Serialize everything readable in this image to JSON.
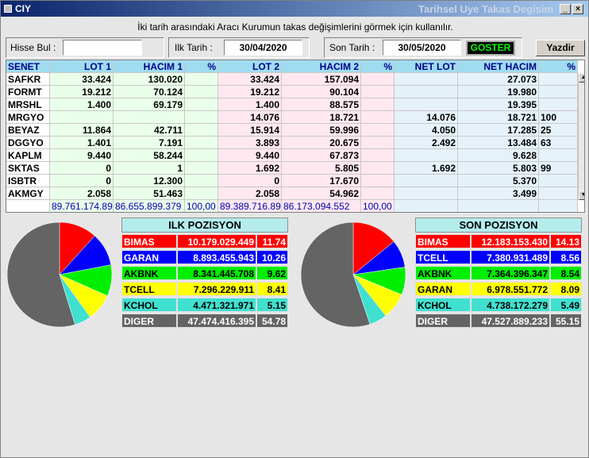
{
  "window": {
    "app_name": "CIY",
    "title": "Tarihsel Uye Takas Degisim"
  },
  "hint": "İki tarih arasındaki  Aracı Kurumun takas değişimlerini görmek için kullanılır.",
  "form": {
    "hisse_label": "Hisse Bul :",
    "hisse_value": "",
    "ilk_label": "Ilk Tarih :",
    "ilk_value": "30/04/2020",
    "son_label": "Son Tarih :",
    "son_value": "30/05/2020",
    "goster": "GOSTER",
    "yazdir": "Yazdir"
  },
  "table": {
    "headers": [
      "SENET",
      "LOT 1",
      "HACIM 1",
      "%",
      "LOT 2",
      "HACIM 2",
      "%",
      "NET LOT",
      "NET HACIM",
      "%"
    ],
    "rows": [
      [
        "SAFKR",
        "33.424",
        "130.020",
        "",
        "33.424",
        "157.094",
        "",
        "",
        "27.073",
        ""
      ],
      [
        "FORMT",
        "19.212",
        "70.124",
        "",
        "19.212",
        "90.104",
        "",
        "",
        "19.980",
        ""
      ],
      [
        "MRSHL",
        "1.400",
        "69.179",
        "",
        "1.400",
        "88.575",
        "",
        "",
        "19.395",
        ""
      ],
      [
        "MRGYO",
        "",
        "",
        "",
        "14.076",
        "18.721",
        "",
        "14.076",
        "18.721",
        "100"
      ],
      [
        "BEYAZ",
        "11.864",
        "42.711",
        "",
        "15.914",
        "59.996",
        "",
        "4.050",
        "17.285",
        "25"
      ],
      [
        "DGGYO",
        "1.401",
        "7.191",
        "",
        "3.893",
        "20.675",
        "",
        "2.492",
        "13.484",
        "63"
      ],
      [
        "KAPLM",
        "9.440",
        "58.244",
        "",
        "9.440",
        "67.873",
        "",
        "",
        "9.628",
        ""
      ],
      [
        "SKTAS",
        "0",
        "1",
        "",
        "1.692",
        "5.805",
        "",
        "1.692",
        "5.803",
        "99"
      ],
      [
        "ISBTR",
        "0",
        "12.300",
        "",
        "0",
        "17.670",
        "",
        "",
        "5.370",
        ""
      ],
      [
        "AKMGY",
        "2.058",
        "51.463",
        "",
        "2.058",
        "54.962",
        "",
        "",
        "3.499",
        ""
      ]
    ],
    "totals": [
      "",
      "89.761.174.891",
      "86.655.899.379",
      "100,00",
      "89.389.716.891",
      "86.173.094.552",
      "100,00",
      "",
      "",
      ""
    ]
  },
  "ilk_pozisyon": {
    "title": "ILK POZISYON",
    "rows": [
      {
        "name": "BIMAS",
        "value": "10.179.029.449",
        "pct": "11.74",
        "color": "#ff0000",
        "text": "#ffffff"
      },
      {
        "name": "GARAN",
        "value": "8.893.455.943",
        "pct": "10.26",
        "color": "#0000ff",
        "text": "#ffffff"
      },
      {
        "name": "AKBNK",
        "value": "8.341.445.708",
        "pct": "9.62",
        "color": "#00ee00",
        "text": "#000000"
      },
      {
        "name": "TCELL",
        "value": "7.296.229.911",
        "pct": "8.41",
        "color": "#ffff00",
        "text": "#000000"
      },
      {
        "name": "KCHOL",
        "value": "4.471.321.971",
        "pct": "5.15",
        "color": "#40e0d0",
        "text": "#000000"
      },
      {
        "name": "DIGER",
        "value": "47.474.416.395",
        "pct": "54.78",
        "color": "#646464",
        "text": "#ffffff"
      }
    ]
  },
  "son_pozisyon": {
    "title": "SON POZISYON",
    "rows": [
      {
        "name": "BIMAS",
        "value": "12.183.153.430",
        "pct": "14.13",
        "color": "#ff0000",
        "text": "#ffffff"
      },
      {
        "name": "TCELL",
        "value": "7.380.931.489",
        "pct": "8.56",
        "color": "#0000ff",
        "text": "#ffffff"
      },
      {
        "name": "AKBNK",
        "value": "7.364.396.347",
        "pct": "8.54",
        "color": "#00ee00",
        "text": "#000000"
      },
      {
        "name": "GARAN",
        "value": "6.978.551.772",
        "pct": "8.09",
        "color": "#ffff00",
        "text": "#000000"
      },
      {
        "name": "KCHOL",
        "value": "4.738.172.279",
        "pct": "5.49",
        "color": "#40e0d0",
        "text": "#000000"
      },
      {
        "name": "DIGER",
        "value": "47.527.889.233",
        "pct": "55.15",
        "color": "#646464",
        "text": "#ffffff"
      }
    ]
  },
  "chart_data": [
    {
      "type": "pie",
      "categories": [
        "BIMAS",
        "GARAN",
        "AKBNK",
        "TCELL",
        "KCHOL",
        "DIGER"
      ],
      "values": [
        11.74,
        10.26,
        9.62,
        8.41,
        5.15,
        54.78
      ],
      "colors": [
        "#ff0000",
        "#0000ff",
        "#00ee00",
        "#ffff00",
        "#40e0d0",
        "#646464"
      ]
    },
    {
      "type": "pie",
      "categories": [
        "BIMAS",
        "TCELL",
        "AKBNK",
        "GARAN",
        "KCHOL",
        "DIGER"
      ],
      "values": [
        14.13,
        8.56,
        8.54,
        8.09,
        5.49,
        55.15
      ],
      "colors": [
        "#ff0000",
        "#0000ff",
        "#00ee00",
        "#ffff00",
        "#40e0d0",
        "#646464"
      ]
    }
  ]
}
